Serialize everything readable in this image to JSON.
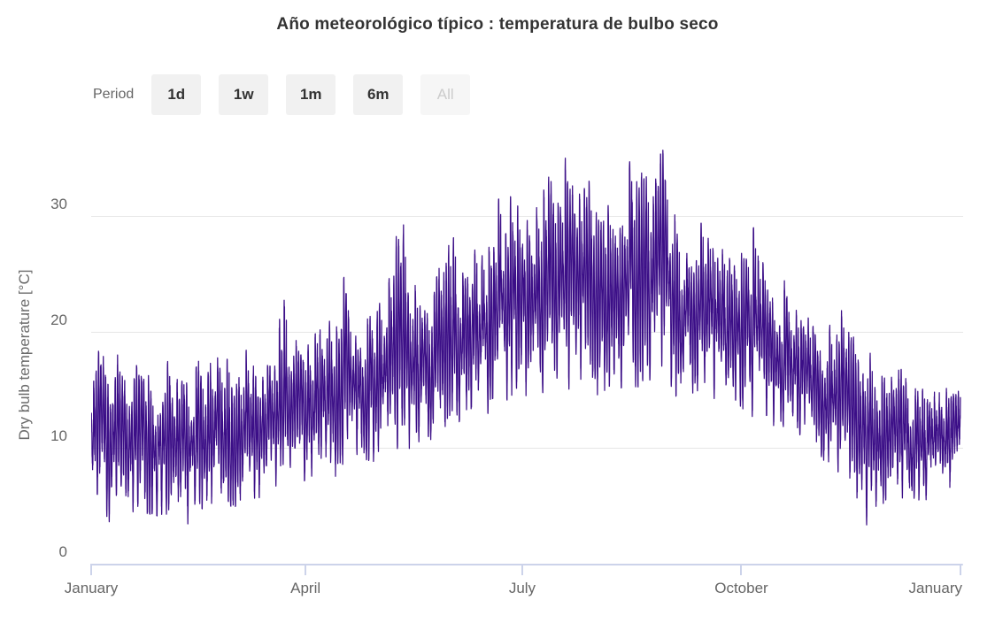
{
  "header": {
    "title": "Año meteorológico típico : temperatura de bulbo seco"
  },
  "range_selector": {
    "label": "Period",
    "buttons": [
      {
        "label": "1d",
        "state": "enabled"
      },
      {
        "label": "1w",
        "state": "enabled"
      },
      {
        "label": "1m",
        "state": "enabled"
      },
      {
        "label": "6m",
        "state": "enabled"
      },
      {
        "label": "All",
        "state": "selected-disabled"
      }
    ]
  },
  "chart_data": {
    "type": "line",
    "title": "Año meteorológico típico : temperatura de bulbo seco",
    "xlabel": "",
    "ylabel": "Dry bulb temperature [°C]",
    "legend": "none",
    "grid": "horizontal",
    "yticks": [
      0,
      10,
      20,
      30
    ],
    "ylim": [
      0,
      36.5
    ],
    "xticks": [
      {
        "day": 0,
        "label": "January"
      },
      {
        "day": 90,
        "label": "April"
      },
      {
        "day": 181,
        "label": "July"
      },
      {
        "day": 273,
        "label": "October"
      },
      {
        "day": 365,
        "label": "January"
      }
    ],
    "days_per_year": 365,
    "series": [
      {
        "name": "Dry bulb temperature",
        "color": "#3b0e87",
        "resolution": "hourly values over one full year",
        "weekly_min_max_degC": [
          [
            4,
            18.5
          ],
          [
            3.5,
            17.5
          ],
          [
            5,
            17
          ],
          [
            4,
            16.5
          ],
          [
            4.5,
            17.5
          ],
          [
            3.8,
            16
          ],
          [
            5,
            17
          ],
          [
            5.5,
            17.5
          ],
          [
            5,
            18
          ],
          [
            6,
            18
          ],
          [
            6,
            17
          ],
          [
            7,
            22.4
          ],
          [
            7,
            19
          ],
          [
            8,
            20
          ],
          [
            8,
            21
          ],
          [
            9,
            24.4
          ],
          [
            9,
            21
          ],
          [
            10,
            22.5
          ],
          [
            10,
            29
          ],
          [
            11,
            24
          ],
          [
            11,
            24.5
          ],
          [
            12,
            27.8
          ],
          [
            12,
            25
          ],
          [
            13,
            27
          ],
          [
            14,
            31.3
          ],
          [
            15,
            31.5
          ],
          [
            15,
            30.5
          ],
          [
            15,
            32.5
          ],
          [
            15.5,
            34.7
          ],
          [
            16,
            33
          ],
          [
            15,
            29.5
          ],
          [
            15,
            31
          ],
          [
            15.5,
            35
          ],
          [
            16,
            33.5
          ],
          [
            15.5,
            35.4
          ],
          [
            14.5,
            28.5
          ],
          [
            15,
            29.5
          ],
          [
            14.5,
            28
          ],
          [
            14,
            26
          ],
          [
            13,
            28.7
          ],
          [
            12,
            26
          ],
          [
            12,
            24
          ],
          [
            11,
            22
          ],
          [
            9,
            21
          ],
          [
            8,
            20.5
          ],
          [
            7.5,
            21.5
          ],
          [
            3.7,
            18
          ],
          [
            5,
            16
          ],
          [
            6,
            16.5
          ],
          [
            5.5,
            15
          ],
          [
            6,
            14.5
          ],
          [
            7,
            14.8
          ],
          [
            8,
            14.5
          ]
        ]
      }
    ],
    "noise_seed": 11,
    "daily_jitter_fraction": 0.42,
    "hourly_jitter_degC": 1.1
  }
}
